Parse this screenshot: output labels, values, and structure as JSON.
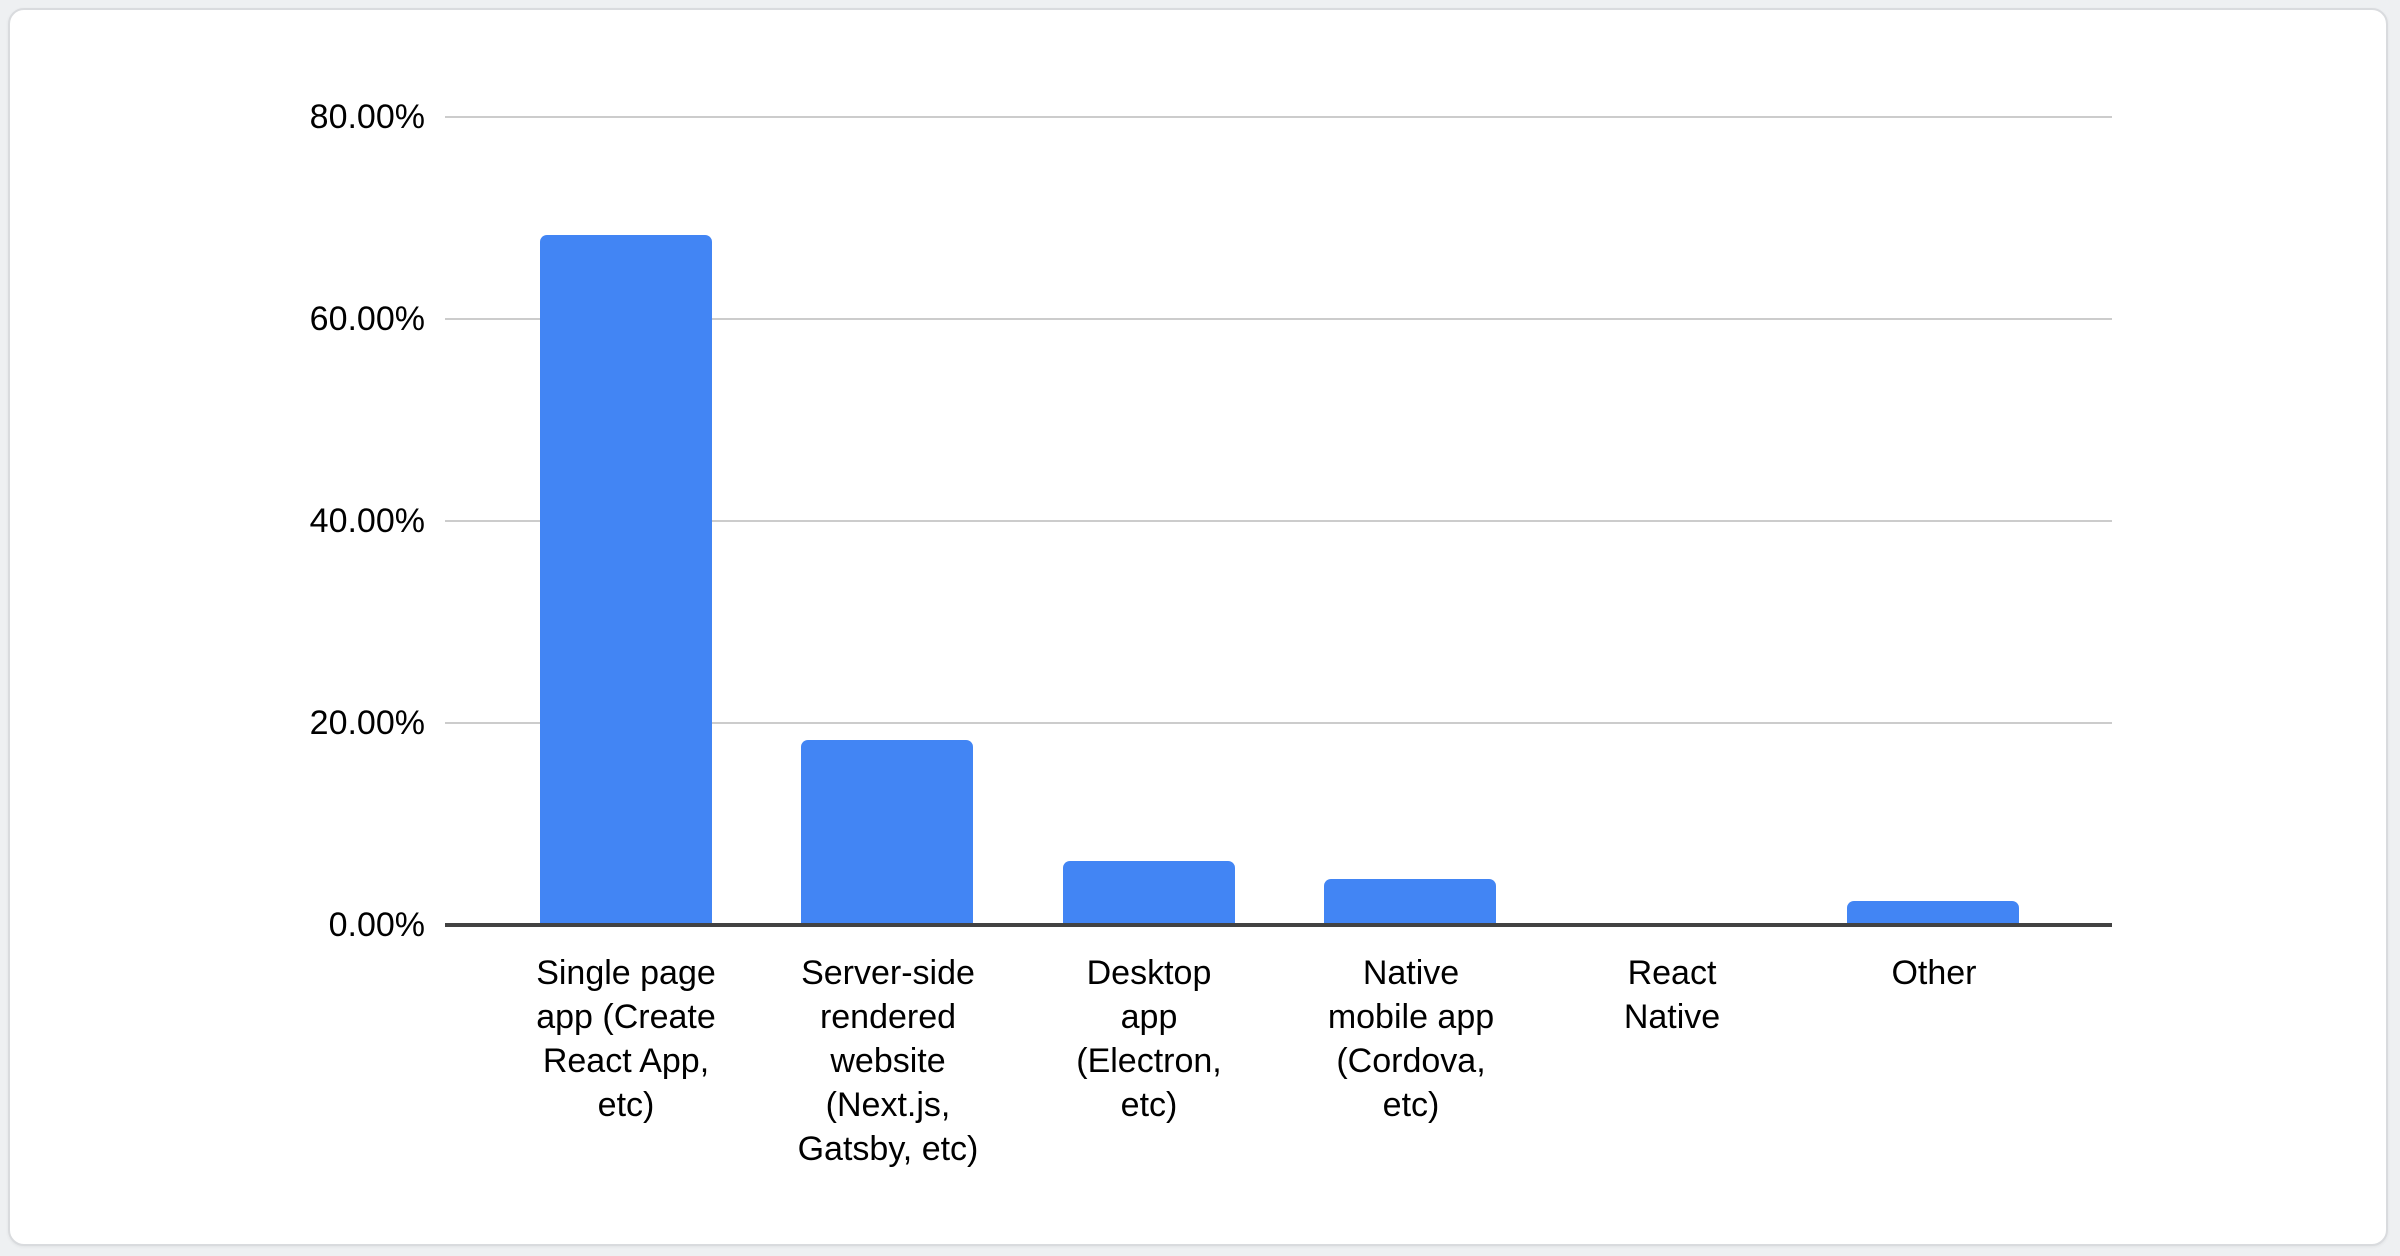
{
  "page": {
    "background_color": "#eef0f2",
    "card_background": "#ffffff",
    "card_border_color": "#d9dbde"
  },
  "chart_data": {
    "type": "bar",
    "title": "",
    "xlabel": "",
    "ylabel": "",
    "categories": [
      "Single page app (Create React App, etc)",
      "Server-side rendered website (Next.js, Gatsby, etc)",
      "Desktop app (Electron, etc)",
      "Native mobile app (Cordova, etc)",
      "React Native",
      "Other"
    ],
    "category_display": [
      "Single page\napp (Create\nReact App,\netc)",
      "Server-side\nrendered\nwebsite\n(Next.js,\nGatsby, etc)",
      "Desktop\napp\n(Electron,\netc)",
      "Native\nmobile app\n(Cordova,\netc)",
      "React\nNative",
      "Other"
    ],
    "values": [
      68.3,
      18.3,
      6.3,
      4.6,
      0,
      2.4
    ],
    "unit": "%",
    "ylim": [
      0,
      80
    ],
    "yticks": [
      {
        "label": "0.00%",
        "value": 0
      },
      {
        "label": "20.00%",
        "value": 20
      },
      {
        "label": "40.00%",
        "value": 40
      },
      {
        "label": "60.00%",
        "value": 60
      },
      {
        "label": "80.00%",
        "value": 80
      }
    ],
    "grid": true,
    "legend": false,
    "colors": {
      "bar": "#4285f4",
      "gridline": "#cccccc",
      "axis_line": "#424242",
      "text": "#000000"
    }
  }
}
